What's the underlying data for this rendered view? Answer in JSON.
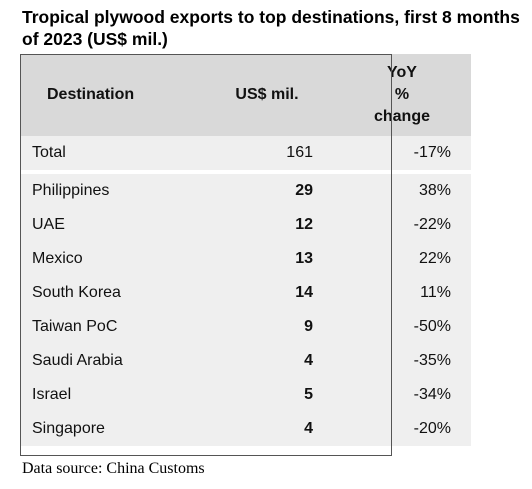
{
  "chart_data": {
    "type": "table",
    "title": "Tropical plywood exports to top destinations, first 8 months of 2023 (US$ mil.)",
    "columns": [
      "Destination",
      "US$ mil.",
      "YoY % change"
    ],
    "header": {
      "destination": "Destination",
      "value": "US$ mil.",
      "yoy_lines": [
        "YoY",
        "%",
        "change"
      ]
    },
    "total": {
      "label": "Total",
      "value": "161",
      "yoy": "-17%"
    },
    "rows": [
      {
        "destination": "Philippines",
        "value": "29",
        "yoy": "38%"
      },
      {
        "destination": "UAE",
        "value": "12",
        "yoy": "-22%"
      },
      {
        "destination": "Mexico",
        "value": "13",
        "yoy": "22%"
      },
      {
        "destination": "South Korea",
        "value": "14",
        "yoy": "11%"
      },
      {
        "destination": "Taiwan PoC",
        "value": "9",
        "yoy": "-50%"
      },
      {
        "destination": "Saudi Arabia",
        "value": "4",
        "yoy": "-35%"
      },
      {
        "destination": "Israel",
        "value": "5",
        "yoy": "-34%"
      },
      {
        "destination": "Singapore",
        "value": "4",
        "yoy": "-20%"
      }
    ],
    "source": "Data source: China Customs"
  },
  "colors": {
    "header_bg": "#d9d9d9",
    "cell_bg": "#efefef",
    "border": "#555555"
  }
}
